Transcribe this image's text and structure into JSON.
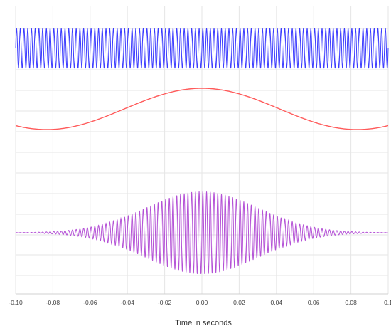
{
  "chart_data": {
    "type": "line",
    "title": "",
    "xlabel": "Time in seconds",
    "ylabel": "",
    "xlim": [
      -0.1,
      0.1
    ],
    "x_ticks": [
      "-0.10",
      "-0.08",
      "-0.06",
      "-0.04",
      "-0.02",
      "0.00",
      "0.02",
      "0.04",
      "0.06",
      "0.08",
      "0.1"
    ],
    "grid": true,
    "legend": "none",
    "series": [
      {
        "key": "carrier",
        "color": "#3b3bff",
        "waveform": "sine",
        "frequency_hz": 500,
        "amplitude": 1,
        "sample_step": 0.0001
      },
      {
        "key": "envelope",
        "color": "#ff5a5a",
        "waveform": "cosine",
        "frequency_hz": 6,
        "amplitude": 1,
        "sample_step": 0.0005
      },
      {
        "key": "modulated",
        "color": "#b451d6",
        "waveform": "gaussian-modulated sine",
        "frequency_hz": 500,
        "amplitude": 1,
        "envelope_sigma_s": 0.03,
        "sample_step": 0.0001
      }
    ]
  }
}
